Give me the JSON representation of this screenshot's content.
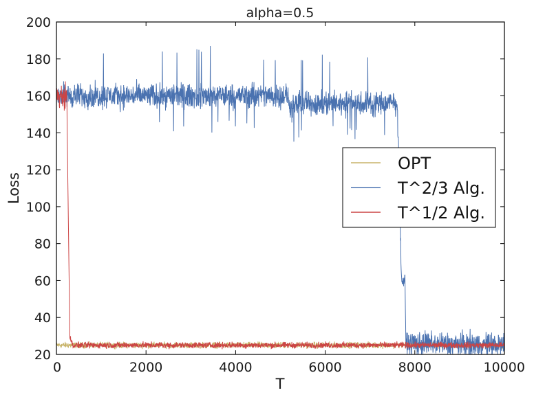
{
  "chart_data": {
    "type": "line",
    "title": "alpha=0.5",
    "xlabel": "T",
    "ylabel": "Loss",
    "xlim": [
      0,
      10000
    ],
    "ylim": [
      20,
      200
    ],
    "xticks": [
      0,
      2000,
      4000,
      6000,
      8000,
      10000
    ],
    "yticks": [
      20,
      40,
      60,
      80,
      100,
      120,
      140,
      160,
      180,
      200
    ],
    "xtick_labels": [
      "0",
      "2000",
      "4000",
      "6000",
      "8000",
      "10000"
    ],
    "ytick_labels": [
      "20",
      "40",
      "60",
      "80",
      "100",
      "120",
      "140",
      "160",
      "180",
      "200"
    ],
    "legend_position": "center-right",
    "series": [
      {
        "name": "OPT",
        "color": "#c8b46a",
        "mean": [
          [
            0,
            25
          ],
          [
            10000,
            25
          ]
        ],
        "noise": 1.5
      },
      {
        "name": "T^2/3 Alg.",
        "color": "#4a72b0",
        "mean": [
          [
            0,
            160
          ],
          [
            5150,
            160
          ],
          [
            5250,
            152
          ],
          [
            5400,
            156
          ],
          [
            7600,
            156
          ],
          [
            7650,
            128
          ],
          [
            7700,
            60
          ],
          [
            7780,
            60
          ],
          [
            7800,
            26
          ],
          [
            10000,
            25
          ]
        ],
        "noise": 6
      },
      {
        "name": "T^1/2 Alg.",
        "color": "#cc4444",
        "mean": [
          [
            0,
            160
          ],
          [
            230,
            160
          ],
          [
            300,
            30
          ],
          [
            360,
            25
          ],
          [
            10000,
            25
          ]
        ],
        "noise": 1.5
      }
    ]
  }
}
